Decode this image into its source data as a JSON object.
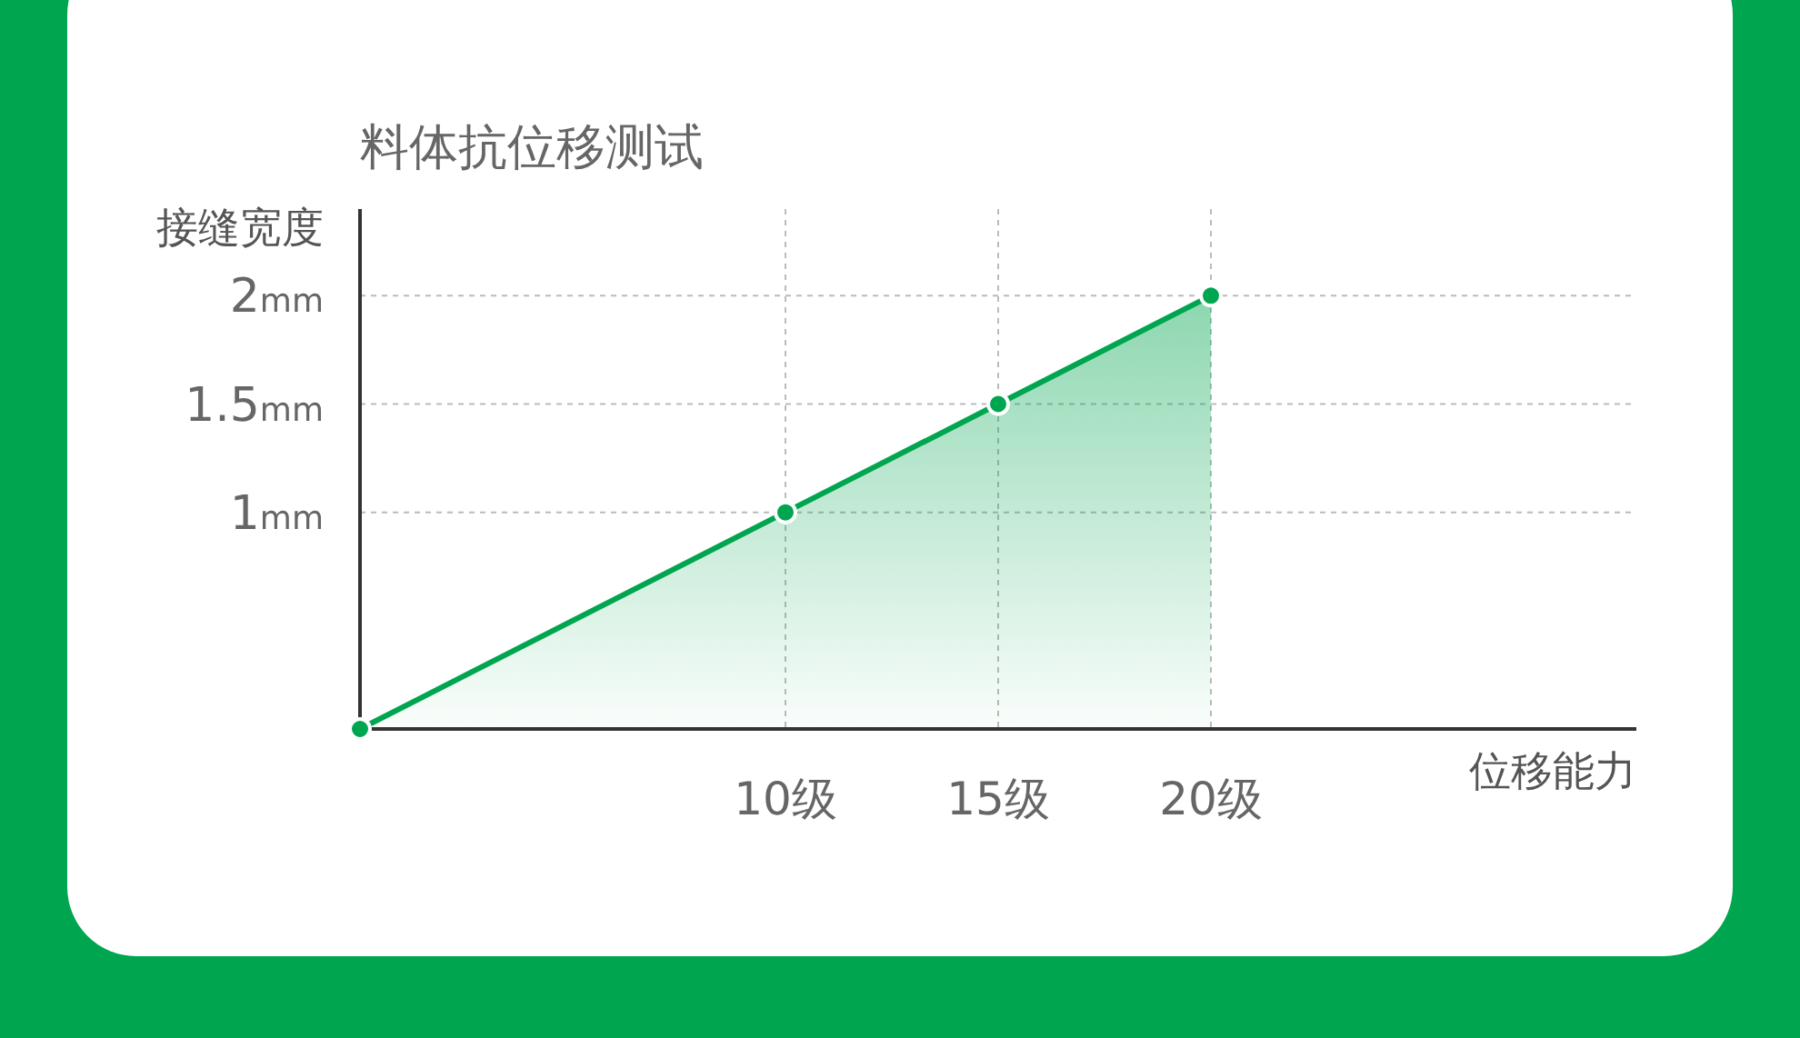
{
  "chart_data": {
    "type": "area",
    "title": "料体抗位移测试",
    "xlabel": "位移能力",
    "ylabel": "接缝宽度",
    "x": [
      0,
      10,
      15,
      20
    ],
    "series": [
      {
        "color": "#00a54f",
        "values": [
          0,
          1,
          1.5,
          2
        ]
      }
    ],
    "xlim": [
      0,
      30
    ],
    "ylim": [
      0,
      2.4
    ],
    "xticks": [
      {
        "value": 10,
        "label": "10级"
      },
      {
        "value": 15,
        "label": "15级"
      },
      {
        "value": 20,
        "label": "20级"
      }
    ],
    "yticks": [
      {
        "value": 1,
        "label": "1mm"
      },
      {
        "value": 1.5,
        "label": "1.5mm"
      },
      {
        "value": 2,
        "label": "2mm"
      }
    ],
    "grid": true,
    "marker": "circle"
  }
}
